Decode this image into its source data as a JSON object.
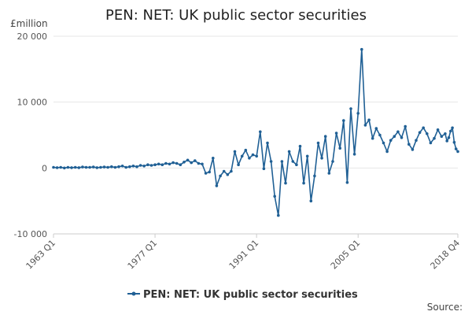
{
  "chart_data": {
    "type": "line",
    "title": "PEN: NET: UK public sector securities",
    "unit_label": "£million",
    "source_label": "Source:",
    "x_tick_labels": [
      "1963 Q1",
      "1977 Q1",
      "1991 Q1",
      "2005 Q1",
      "2018 Q4"
    ],
    "y_tick_labels": [
      "20 000",
      "10 000",
      "0",
      "-10 000"
    ],
    "y_ticks": [
      20000,
      10000,
      0,
      -10000
    ],
    "ylim": [
      -10000,
      20000
    ],
    "xlim": [
      "1963 Q1",
      "2018 Q4"
    ],
    "grid": true,
    "legend_position": "bottom",
    "series": [
      {
        "name": "PEN: NET: UK public sector securities",
        "color": "#206095",
        "x": [
          "1963 Q1",
          "1963 Q3",
          "1964 Q1",
          "1964 Q3",
          "1965 Q1",
          "1965 Q3",
          "1966 Q1",
          "1966 Q3",
          "1967 Q1",
          "1967 Q3",
          "1968 Q1",
          "1968 Q3",
          "1969 Q1",
          "1969 Q3",
          "1970 Q1",
          "1970 Q3",
          "1971 Q1",
          "1971 Q3",
          "1972 Q1",
          "1972 Q3",
          "1973 Q1",
          "1973 Q3",
          "1974 Q1",
          "1974 Q3",
          "1975 Q1",
          "1975 Q3",
          "1976 Q1",
          "1976 Q3",
          "1977 Q1",
          "1977 Q3",
          "1978 Q1",
          "1978 Q3",
          "1979 Q1",
          "1979 Q3",
          "1980 Q1",
          "1980 Q3",
          "1981 Q1",
          "1981 Q3",
          "1982 Q1",
          "1982 Q3",
          "1983 Q1",
          "1983 Q3",
          "1984 Q1",
          "1984 Q3",
          "1985 Q1",
          "1985 Q3",
          "1986 Q1",
          "1986 Q3",
          "1987 Q1",
          "1987 Q3",
          "1988 Q1",
          "1988 Q3",
          "1989 Q1",
          "1989 Q3",
          "1990 Q1",
          "1990 Q3",
          "1991 Q1",
          "1991 Q3",
          "1992 Q1",
          "1992 Q3",
          "1993 Q1",
          "1993 Q3",
          "1994 Q1",
          "1994 Q3",
          "1995 Q1",
          "1995 Q3",
          "1996 Q1",
          "1996 Q3",
          "1997 Q1",
          "1997 Q3",
          "1998 Q1",
          "1998 Q3",
          "1999 Q1",
          "1999 Q3",
          "2000 Q1",
          "2000 Q3",
          "2001 Q1",
          "2001 Q3",
          "2002 Q1",
          "2002 Q3",
          "2003 Q1",
          "2003 Q3",
          "2004 Q1",
          "2004 Q3",
          "2005 Q1",
          "2005 Q3",
          "2006 Q1",
          "2006 Q3",
          "2007 Q1",
          "2007 Q3",
          "2008 Q1",
          "2008 Q3",
          "2009 Q1",
          "2009 Q3",
          "2010 Q1",
          "2010 Q3",
          "2011 Q1",
          "2011 Q3",
          "2012 Q1",
          "2012 Q3",
          "2013 Q1",
          "2013 Q3",
          "2014 Q1",
          "2014 Q3",
          "2015 Q1",
          "2015 Q3",
          "2016 Q1",
          "2016 Q3",
          "2017 Q1",
          "2017 Q2",
          "2017 Q3",
          "2017 Q4",
          "2018 Q1",
          "2018 Q2",
          "2018 Q3",
          "2018 Q4"
        ],
        "values": [
          100,
          50,
          100,
          0,
          100,
          50,
          100,
          50,
          150,
          100,
          100,
          150,
          50,
          100,
          150,
          100,
          200,
          100,
          200,
          300,
          100,
          200,
          300,
          200,
          400,
          300,
          500,
          400,
          500,
          600,
          500,
          700,
          600,
          800,
          700,
          500,
          900,
          1200,
          800,
          1100,
          700,
          600,
          -800,
          -600,
          1500,
          -2700,
          -1200,
          -500,
          -1000,
          -500,
          2500,
          500,
          1800,
          2700,
          1500,
          2000,
          1800,
          5500,
          -100,
          3800,
          1000,
          -4300,
          -7200,
          1000,
          -2300,
          2500,
          1000,
          500,
          3300,
          -2300,
          1800,
          -5000,
          -1200,
          3800,
          1500,
          4800,
          -800,
          1000,
          5300,
          3000,
          7200,
          -2200,
          9000,
          2100,
          8300,
          18000,
          6500,
          7300,
          4500,
          6000,
          5000,
          3800,
          2500,
          4200,
          4800,
          5500,
          4600,
          6300,
          3600,
          2800,
          4200,
          5400,
          6100,
          5200,
          3800,
          4500,
          5800,
          4800,
          5200,
          4100,
          4600,
          5600,
          6100,
          3900,
          2900,
          2500
        ]
      }
    ]
  }
}
